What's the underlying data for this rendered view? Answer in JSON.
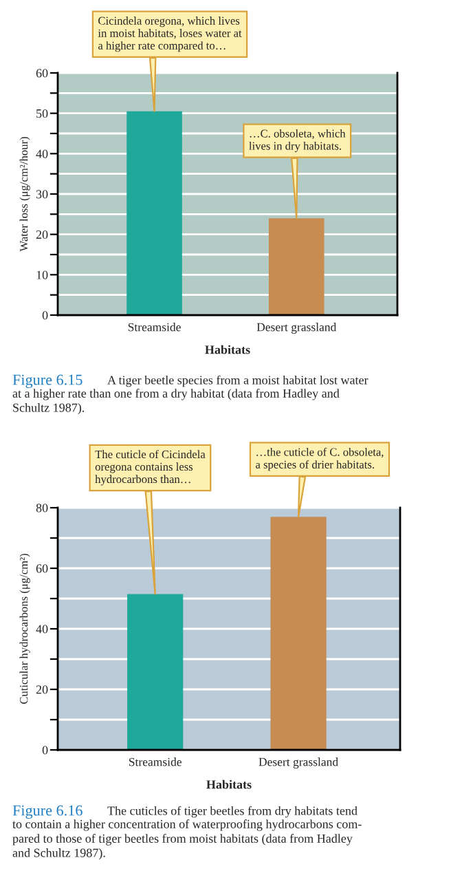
{
  "chart_data": [
    {
      "type": "bar",
      "categories": [
        "Streamside",
        "Desert grassland"
      ],
      "values": [
        50.5,
        24
      ],
      "colors": [
        "#1ea99b",
        "#c68c52"
      ],
      "xlabel": "Habitats",
      "ylabel": "Water loss (μg/cm²/hour)",
      "ylim": [
        0,
        60
      ],
      "yticks": [
        0,
        {
          "value": 5,
          "label": null
        },
        10,
        {
          "value": 15,
          "label": null
        },
        20,
        {
          "value": 25,
          "label": null
        },
        30,
        {
          "value": 35,
          "label": null
        },
        40,
        {
          "value": 45,
          "label": null
        },
        50,
        {
          "value": 55,
          "label": null
        },
        60
      ],
      "grid": "y",
      "annotations": [
        {
          "text": "Cicindela oregona, which lives\nin moist habitats, loses water at\na higher rate compared to…",
          "x": "Streamside",
          "y": 50.5
        },
        {
          "text": "…C. obsoleta, which\nlives in dry habitats.",
          "x": "Desert grassland",
          "y": 24
        },
        "Figure 6.15 A tiger beetle species from a moist habitat lost water\nat a higher rate than one from a dry habitat (data from Hadley and\nSchultz 1987)."
      ]
    },
    {
      "type": "bar",
      "categories": [
        "Streamside",
        "Desert grassland"
      ],
      "values": [
        51.5,
        77
      ],
      "colors": [
        "#1ea99b",
        "#c68c52"
      ],
      "xlabel": "Habitats",
      "ylabel": "Cuticular hydrocarbons (μg/cm²)",
      "ylim": [
        0,
        80
      ],
      "yticks": [
        0,
        {
          "value": 10,
          "label": null
        },
        20,
        {
          "value": 30,
          "label": null
        },
        40,
        {
          "value": 50,
          "label": null
        },
        60,
        {
          "value": 70,
          "label": null
        },
        80
      ],
      "grid": "y",
      "annotations": [
        {
          "text": "The cuticle of Cicindela\noregona contains less\nhydrocarbons than…",
          "x": "Streamside",
          "y": 51.5
        },
        {
          "text": "…the cuticle of C. obsoleta,\na species of drier habitats.",
          "x": "Desert grassland",
          "y": 77
        },
        "Figure 6.16 The cuticles of tiger beetles from dry habitats tend\nto contain a higher concentration of waterproofing hydrocarbons com-\npared to those of tiger beetles from moist habitats (data from Hadley\nand Schultz 1987)."
      ]
    }
  ]
}
